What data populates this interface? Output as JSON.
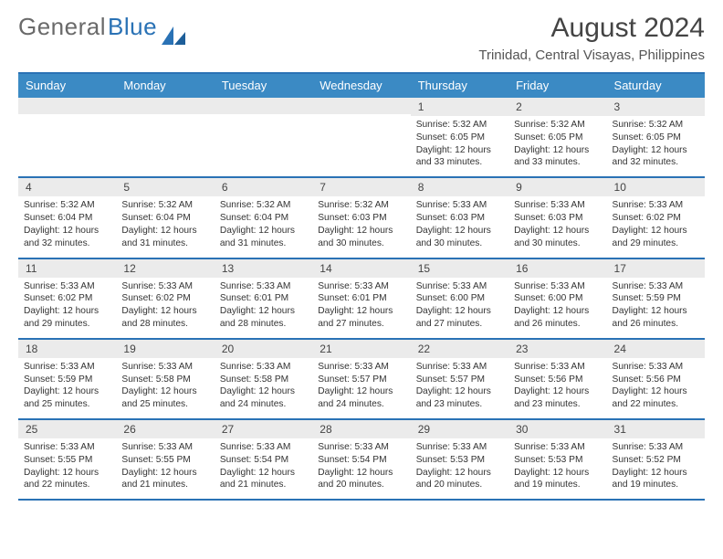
{
  "brand": {
    "part1": "General",
    "part2": "Blue"
  },
  "title": "August 2024",
  "subtitle": "Trinidad, Central Visayas, Philippines",
  "dow": [
    "Sunday",
    "Monday",
    "Tuesday",
    "Wednesday",
    "Thursday",
    "Friday",
    "Saturday"
  ],
  "colors": {
    "accent": "#2a72b5",
    "header_bg": "#3b8ac4",
    "daynum_bg": "#ebebeb",
    "text": "#333333",
    "title": "#444444"
  },
  "weeks": [
    [
      {
        "blank": true
      },
      {
        "blank": true
      },
      {
        "blank": true
      },
      {
        "blank": true
      },
      {
        "day": "1",
        "sunrise": "Sunrise: 5:32 AM",
        "sunset": "Sunset: 6:05 PM",
        "daylight": "Daylight: 12 hours and 33 minutes."
      },
      {
        "day": "2",
        "sunrise": "Sunrise: 5:32 AM",
        "sunset": "Sunset: 6:05 PM",
        "daylight": "Daylight: 12 hours and 33 minutes."
      },
      {
        "day": "3",
        "sunrise": "Sunrise: 5:32 AM",
        "sunset": "Sunset: 6:05 PM",
        "daylight": "Daylight: 12 hours and 32 minutes."
      }
    ],
    [
      {
        "day": "4",
        "sunrise": "Sunrise: 5:32 AM",
        "sunset": "Sunset: 6:04 PM",
        "daylight": "Daylight: 12 hours and 32 minutes."
      },
      {
        "day": "5",
        "sunrise": "Sunrise: 5:32 AM",
        "sunset": "Sunset: 6:04 PM",
        "daylight": "Daylight: 12 hours and 31 minutes."
      },
      {
        "day": "6",
        "sunrise": "Sunrise: 5:32 AM",
        "sunset": "Sunset: 6:04 PM",
        "daylight": "Daylight: 12 hours and 31 minutes."
      },
      {
        "day": "7",
        "sunrise": "Sunrise: 5:32 AM",
        "sunset": "Sunset: 6:03 PM",
        "daylight": "Daylight: 12 hours and 30 minutes."
      },
      {
        "day": "8",
        "sunrise": "Sunrise: 5:33 AM",
        "sunset": "Sunset: 6:03 PM",
        "daylight": "Daylight: 12 hours and 30 minutes."
      },
      {
        "day": "9",
        "sunrise": "Sunrise: 5:33 AM",
        "sunset": "Sunset: 6:03 PM",
        "daylight": "Daylight: 12 hours and 30 minutes."
      },
      {
        "day": "10",
        "sunrise": "Sunrise: 5:33 AM",
        "sunset": "Sunset: 6:02 PM",
        "daylight": "Daylight: 12 hours and 29 minutes."
      }
    ],
    [
      {
        "day": "11",
        "sunrise": "Sunrise: 5:33 AM",
        "sunset": "Sunset: 6:02 PM",
        "daylight": "Daylight: 12 hours and 29 minutes."
      },
      {
        "day": "12",
        "sunrise": "Sunrise: 5:33 AM",
        "sunset": "Sunset: 6:02 PM",
        "daylight": "Daylight: 12 hours and 28 minutes."
      },
      {
        "day": "13",
        "sunrise": "Sunrise: 5:33 AM",
        "sunset": "Sunset: 6:01 PM",
        "daylight": "Daylight: 12 hours and 28 minutes."
      },
      {
        "day": "14",
        "sunrise": "Sunrise: 5:33 AM",
        "sunset": "Sunset: 6:01 PM",
        "daylight": "Daylight: 12 hours and 27 minutes."
      },
      {
        "day": "15",
        "sunrise": "Sunrise: 5:33 AM",
        "sunset": "Sunset: 6:00 PM",
        "daylight": "Daylight: 12 hours and 27 minutes."
      },
      {
        "day": "16",
        "sunrise": "Sunrise: 5:33 AM",
        "sunset": "Sunset: 6:00 PM",
        "daylight": "Daylight: 12 hours and 26 minutes."
      },
      {
        "day": "17",
        "sunrise": "Sunrise: 5:33 AM",
        "sunset": "Sunset: 5:59 PM",
        "daylight": "Daylight: 12 hours and 26 minutes."
      }
    ],
    [
      {
        "day": "18",
        "sunrise": "Sunrise: 5:33 AM",
        "sunset": "Sunset: 5:59 PM",
        "daylight": "Daylight: 12 hours and 25 minutes."
      },
      {
        "day": "19",
        "sunrise": "Sunrise: 5:33 AM",
        "sunset": "Sunset: 5:58 PM",
        "daylight": "Daylight: 12 hours and 25 minutes."
      },
      {
        "day": "20",
        "sunrise": "Sunrise: 5:33 AM",
        "sunset": "Sunset: 5:58 PM",
        "daylight": "Daylight: 12 hours and 24 minutes."
      },
      {
        "day": "21",
        "sunrise": "Sunrise: 5:33 AM",
        "sunset": "Sunset: 5:57 PM",
        "daylight": "Daylight: 12 hours and 24 minutes."
      },
      {
        "day": "22",
        "sunrise": "Sunrise: 5:33 AM",
        "sunset": "Sunset: 5:57 PM",
        "daylight": "Daylight: 12 hours and 23 minutes."
      },
      {
        "day": "23",
        "sunrise": "Sunrise: 5:33 AM",
        "sunset": "Sunset: 5:56 PM",
        "daylight": "Daylight: 12 hours and 23 minutes."
      },
      {
        "day": "24",
        "sunrise": "Sunrise: 5:33 AM",
        "sunset": "Sunset: 5:56 PM",
        "daylight": "Daylight: 12 hours and 22 minutes."
      }
    ],
    [
      {
        "day": "25",
        "sunrise": "Sunrise: 5:33 AM",
        "sunset": "Sunset: 5:55 PM",
        "daylight": "Daylight: 12 hours and 22 minutes."
      },
      {
        "day": "26",
        "sunrise": "Sunrise: 5:33 AM",
        "sunset": "Sunset: 5:55 PM",
        "daylight": "Daylight: 12 hours and 21 minutes."
      },
      {
        "day": "27",
        "sunrise": "Sunrise: 5:33 AM",
        "sunset": "Sunset: 5:54 PM",
        "daylight": "Daylight: 12 hours and 21 minutes."
      },
      {
        "day": "28",
        "sunrise": "Sunrise: 5:33 AM",
        "sunset": "Sunset: 5:54 PM",
        "daylight": "Daylight: 12 hours and 20 minutes."
      },
      {
        "day": "29",
        "sunrise": "Sunrise: 5:33 AM",
        "sunset": "Sunset: 5:53 PM",
        "daylight": "Daylight: 12 hours and 20 minutes."
      },
      {
        "day": "30",
        "sunrise": "Sunrise: 5:33 AM",
        "sunset": "Sunset: 5:53 PM",
        "daylight": "Daylight: 12 hours and 19 minutes."
      },
      {
        "day": "31",
        "sunrise": "Sunrise: 5:33 AM",
        "sunset": "Sunset: 5:52 PM",
        "daylight": "Daylight: 12 hours and 19 minutes."
      }
    ]
  ]
}
